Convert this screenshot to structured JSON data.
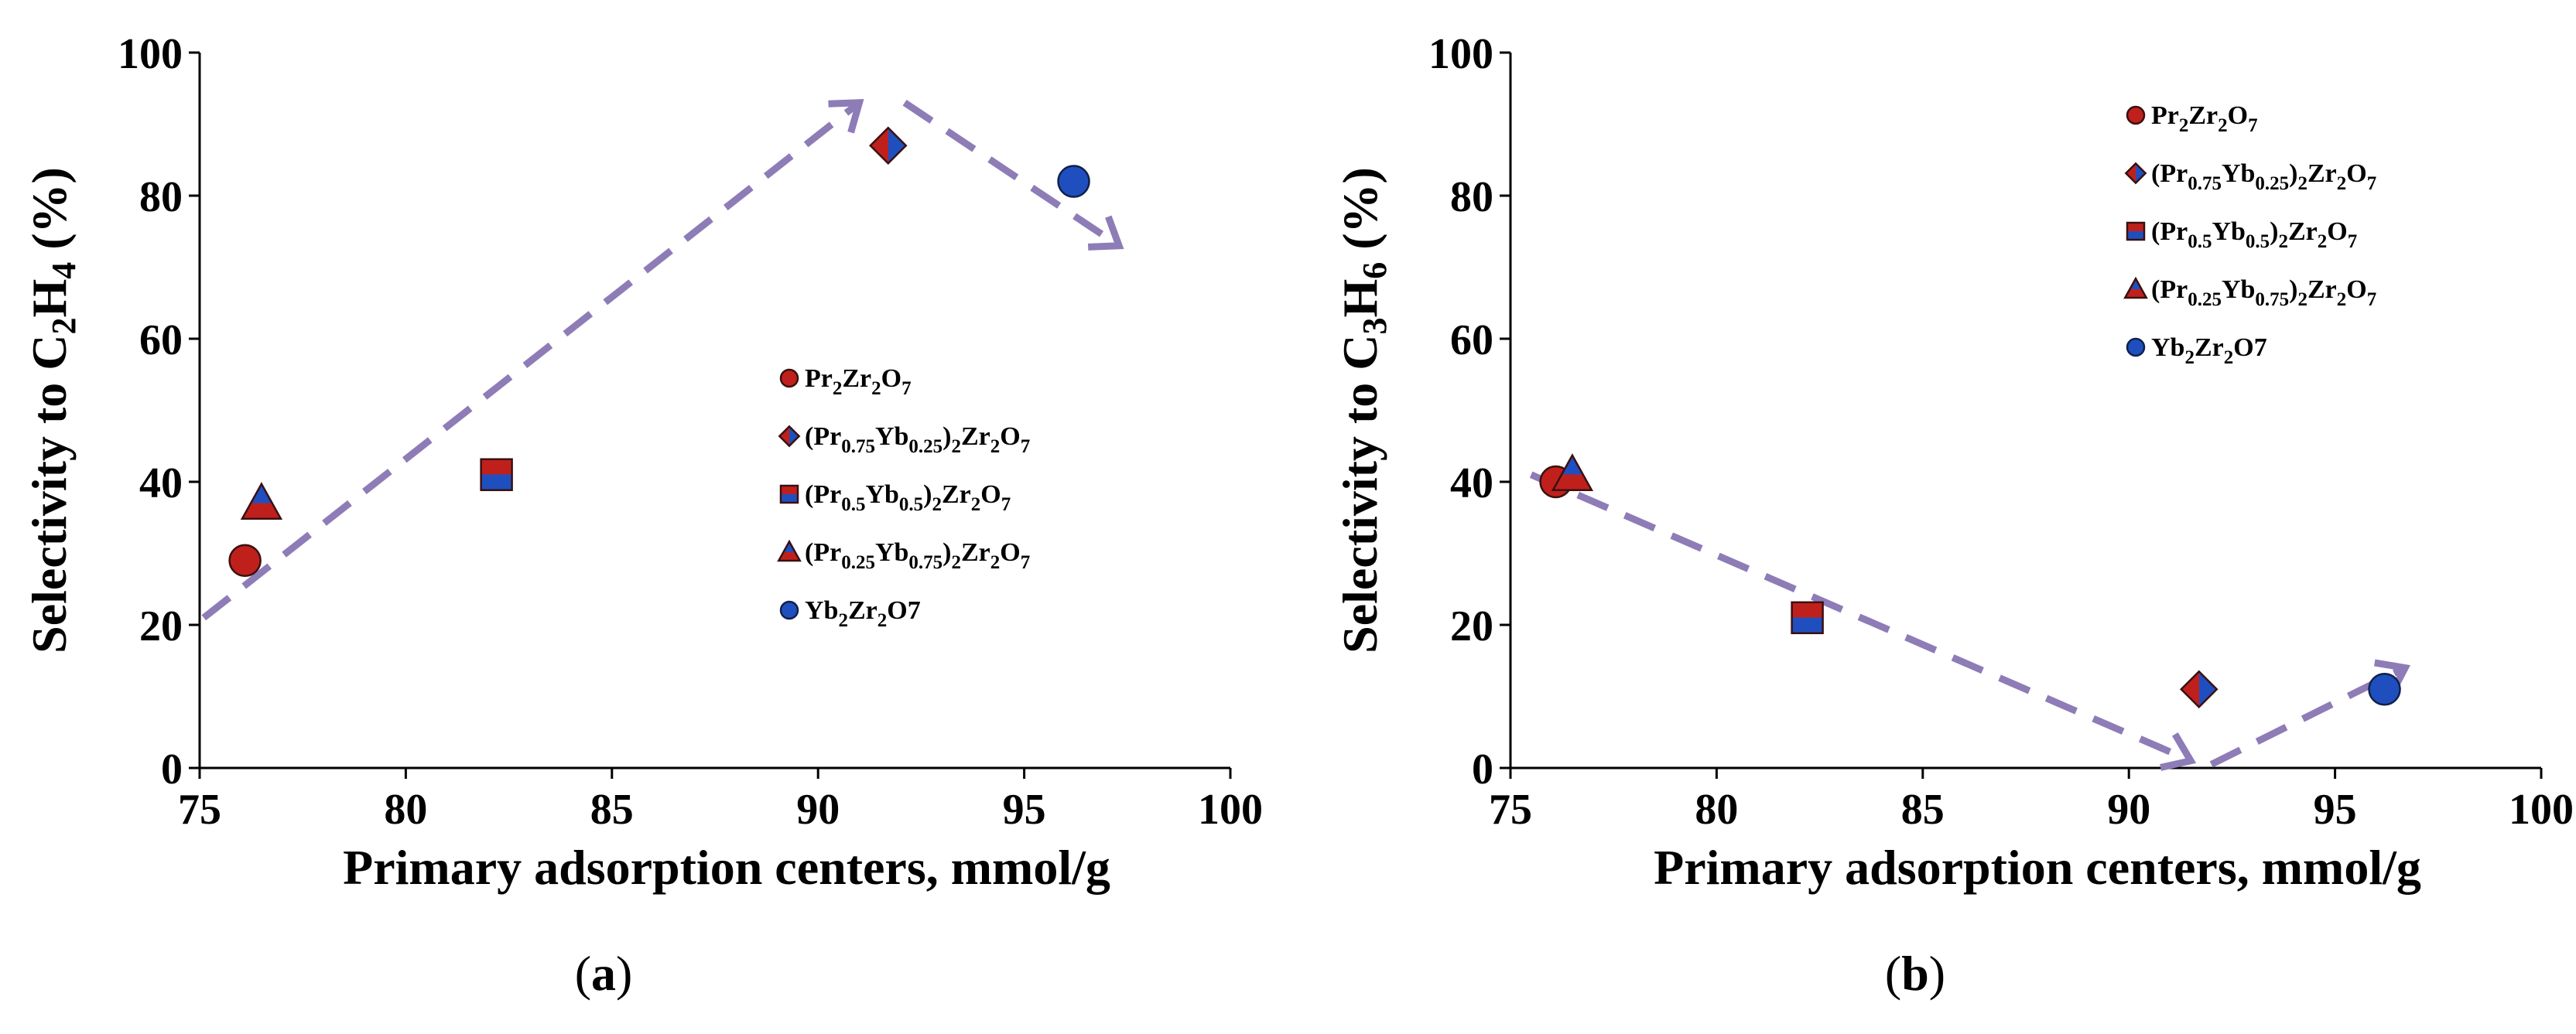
{
  "colors": {
    "red": "#c0201c",
    "blue": "#1f4fbf",
    "arrow": "#8e7cb7",
    "axis": "#000000"
  },
  "chart_data": [
    {
      "panel": "a",
      "caption": {
        "open": "(",
        "letter": "a",
        "close": ")"
      },
      "type": "scatter",
      "xlabel": "Primary adsorption centers, mmol/g",
      "ylabel": {
        "prefix": "Selectivity to C",
        "sub1": "2",
        "mid": "H",
        "sub2": "4",
        "suffix": " (%)"
      },
      "xlim": [
        75,
        100
      ],
      "ylim": [
        0,
        100
      ],
      "xticks": [
        75,
        80,
        85,
        90,
        95,
        100
      ],
      "yticks": [
        0,
        20,
        40,
        60,
        80,
        100
      ],
      "series": [
        {
          "name": "Pr2Zr2O7",
          "marker": "circle",
          "x": 76.1,
          "y": 29
        },
        {
          "name": "(Pr0.75Yb0.25)2Zr2O7",
          "marker": "diamond",
          "x": 91.7,
          "y": 87
        },
        {
          "name": "(Pr0.5Yb0.5)2Zr2O7",
          "marker": "square",
          "x": 82.2,
          "y": 41
        },
        {
          "name": "(Pr0.25Yb0.75)2Zr2O7",
          "marker": "triangle",
          "x": 76.5,
          "y": 37
        },
        {
          "name": "Yb2Zr2O7",
          "marker": "circle-blue",
          "x": 96.2,
          "y": 82
        }
      ],
      "trend_arrows": [
        {
          "from": [
            75.1,
            21
          ],
          "to": [
            91.0,
            93
          ]
        },
        {
          "from": [
            92.1,
            93
          ],
          "to": [
            97.3,
            73
          ]
        }
      ],
      "legend_position": "middle-right"
    },
    {
      "panel": "b",
      "caption": {
        "open": "(",
        "letter": "b",
        "close": ")"
      },
      "type": "scatter",
      "xlabel": "Primary adsorption centers, mmol/g",
      "ylabel": {
        "prefix": "Selectivity to C",
        "sub1": "3",
        "mid": "H",
        "sub2": "6",
        "suffix": " (%)"
      },
      "xlim": [
        75,
        100
      ],
      "ylim": [
        0,
        100
      ],
      "xticks": [
        75,
        80,
        85,
        90,
        95,
        100
      ],
      "yticks": [
        0,
        20,
        40,
        60,
        80,
        100
      ],
      "series": [
        {
          "name": "Pr2Zr2O7",
          "marker": "circle",
          "x": 76.1,
          "y": 40
        },
        {
          "name": "(Pr0.75Yb0.25)2Zr2O7",
          "marker": "diamond",
          "x": 91.7,
          "y": 11
        },
        {
          "name": "(Pr0.5Yb0.5)2Zr2O7",
          "marker": "square",
          "x": 82.2,
          "y": 21
        },
        {
          "name": "(Pr0.25Yb0.75)2Zr2O7",
          "marker": "triangle",
          "x": 76.5,
          "y": 41
        },
        {
          "name": "Yb2Zr2O7",
          "marker": "circle-blue",
          "x": 96.2,
          "y": 11
        }
      ],
      "trend_arrows": [
        {
          "from": [
            75.5,
            41
          ],
          "to": [
            91.5,
            1
          ]
        },
        {
          "from": [
            92.0,
            0.5
          ],
          "to": [
            96.7,
            14
          ]
        }
      ],
      "legend_position": "top-right"
    }
  ],
  "legend": [
    {
      "marker": "circle",
      "text_parts": [
        [
          "Pr",
          "n"
        ],
        [
          "2",
          "sub"
        ],
        [
          "Zr",
          "n"
        ],
        [
          "2",
          "sub"
        ],
        [
          "O",
          "n"
        ],
        [
          "7",
          "sub"
        ]
      ]
    },
    {
      "marker": "diamond",
      "text_parts": [
        [
          "(Pr",
          "n"
        ],
        [
          "0.75",
          "sub"
        ],
        [
          "Yb",
          "n"
        ],
        [
          "0.25",
          "sub"
        ],
        [
          ")",
          "n"
        ],
        [
          "2",
          "sub"
        ],
        [
          "Zr",
          "n"
        ],
        [
          "2",
          "sub"
        ],
        [
          "O",
          "n"
        ],
        [
          "7",
          "sub"
        ]
      ]
    },
    {
      "marker": "square",
      "text_parts": [
        [
          "(Pr",
          "n"
        ],
        [
          "0.5",
          "sub"
        ],
        [
          "Yb",
          "n"
        ],
        [
          "0.5",
          "sub"
        ],
        [
          ")",
          "n"
        ],
        [
          "2",
          "sub"
        ],
        [
          "Zr",
          "n"
        ],
        [
          "2",
          "sub"
        ],
        [
          "O",
          "n"
        ],
        [
          "7",
          "sub"
        ]
      ]
    },
    {
      "marker": "triangle",
      "text_parts": [
        [
          "(Pr",
          "n"
        ],
        [
          "0.25",
          "sub"
        ],
        [
          "Yb",
          "n"
        ],
        [
          "0.75",
          "sub"
        ],
        [
          ")",
          "n"
        ],
        [
          "2",
          "sub"
        ],
        [
          "Zr",
          "n"
        ],
        [
          "2",
          "sub"
        ],
        [
          "O",
          "n"
        ],
        [
          "7",
          "sub"
        ]
      ]
    },
    {
      "marker": "circle-blue",
      "text_parts": [
        [
          "Yb",
          "n"
        ],
        [
          "2",
          "sub"
        ],
        [
          "Zr",
          "n"
        ],
        [
          "2",
          "sub"
        ],
        [
          "O7",
          "n"
        ]
      ]
    }
  ]
}
